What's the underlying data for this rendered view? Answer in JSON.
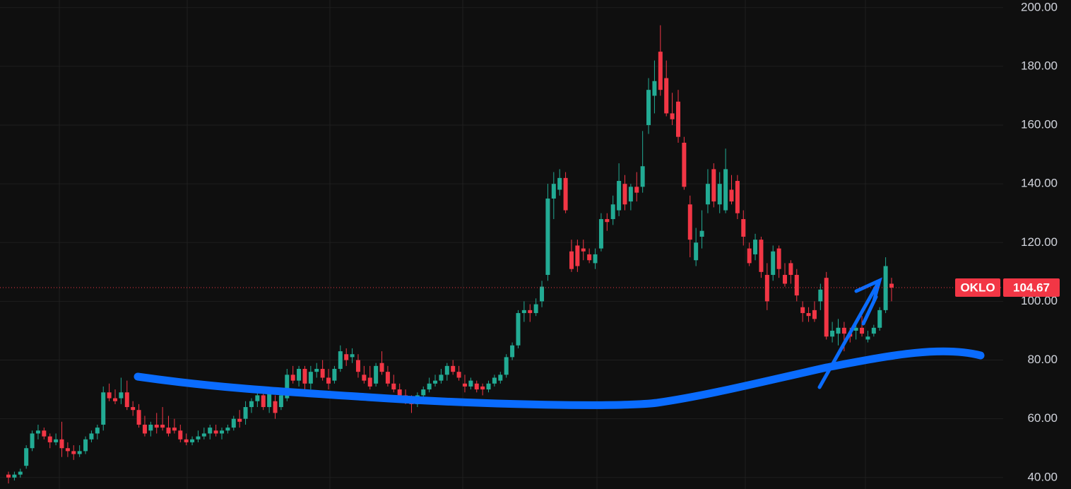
{
  "chart_data": {
    "type": "candlestick",
    "symbol": "OKLO",
    "last_price": 104.67,
    "up_color": "#22ab94",
    "down_color": "#f23645",
    "grid": true,
    "ylim": [
      36.1,
      202.6
    ],
    "yticks": [
      {
        "value": 40,
        "label": "40.00"
      },
      {
        "value": 60,
        "label": "60.00"
      },
      {
        "value": 80,
        "label": "80.00"
      },
      {
        "value": 100,
        "label": "100.00"
      },
      {
        "value": 120,
        "label": "120.00"
      },
      {
        "value": 140,
        "label": "140.00"
      },
      {
        "value": 160,
        "label": "160.00"
      },
      {
        "value": 180,
        "label": "180.00"
      },
      {
        "value": 200,
        "label": "200.00"
      }
    ],
    "ohlc": [
      [
        41,
        42,
        38,
        40
      ],
      [
        40,
        42,
        39,
        41
      ],
      [
        41,
        43,
        40,
        42
      ],
      [
        44,
        51,
        43,
        50
      ],
      [
        50,
        56,
        49,
        55
      ],
      [
        55,
        58,
        53,
        56
      ],
      [
        56,
        57,
        53,
        54
      ],
      [
        54,
        55,
        50,
        52
      ],
      [
        52,
        55,
        51,
        53
      ],
      [
        53,
        59,
        47,
        50
      ],
      [
        50,
        52,
        47,
        49
      ],
      [
        49,
        51,
        46,
        48
      ],
      [
        48,
        51,
        47,
        49
      ],
      [
        49,
        54,
        48,
        53
      ],
      [
        53,
        56,
        52,
        55
      ],
      [
        55,
        58,
        53,
        57
      ],
      [
        58,
        71,
        56,
        69
      ],
      [
        69,
        72,
        66,
        67
      ],
      [
        67,
        70,
        65,
        66
      ],
      [
        67,
        74,
        65,
        69
      ],
      [
        69,
        73,
        63,
        64
      ],
      [
        64,
        66,
        61,
        63
      ],
      [
        63,
        65,
        57,
        58
      ],
      [
        58,
        61,
        54,
        55
      ],
      [
        56,
        59,
        54,
        58
      ],
      [
        58,
        62,
        55,
        57
      ],
      [
        58,
        64,
        56,
        57
      ],
      [
        57,
        61,
        54,
        55
      ],
      [
        57,
        60,
        55,
        56
      ],
      [
        56,
        58,
        52,
        53
      ],
      [
        53,
        55,
        51,
        52
      ],
      [
        52,
        54,
        51,
        53
      ],
      [
        53,
        56,
        52,
        54
      ],
      [
        54,
        57,
        53,
        55
      ],
      [
        55,
        58,
        53,
        57
      ],
      [
        56,
        58,
        54,
        55
      ],
      [
        55,
        57,
        53,
        56
      ],
      [
        56,
        58,
        55,
        57
      ],
      [
        57,
        61,
        56,
        60
      ],
      [
        60,
        63,
        57,
        59
      ],
      [
        60,
        66,
        58,
        64
      ],
      [
        64,
        67,
        62,
        66
      ],
      [
        66,
        70,
        64,
        68
      ],
      [
        68,
        69,
        63,
        64
      ],
      [
        64,
        70,
        62,
        69
      ],
      [
        66,
        68,
        60,
        62
      ],
      [
        64,
        69,
        63,
        68
      ],
      [
        67,
        77,
        66,
        75
      ],
      [
        75,
        78,
        72,
        73
      ],
      [
        73,
        78,
        71,
        77
      ],
      [
        77,
        78,
        70,
        72
      ],
      [
        72,
        78,
        70,
        76
      ],
      [
        76,
        79,
        74,
        77
      ],
      [
        77,
        80,
        73,
        74
      ],
      [
        74,
        77,
        70,
        72
      ],
      [
        73,
        78,
        72,
        77
      ],
      [
        77,
        85,
        76,
        83
      ],
      [
        82,
        84,
        78,
        80
      ],
      [
        81,
        84,
        79,
        82
      ],
      [
        80,
        82,
        74,
        76
      ],
      [
        75,
        78,
        72,
        73
      ],
      [
        74,
        78,
        70,
        71
      ],
      [
        72,
        79,
        71,
        78
      ],
      [
        79,
        83,
        75,
        76
      ],
      [
        76,
        78,
        71,
        72
      ],
      [
        72,
        75,
        69,
        70
      ],
      [
        70,
        72,
        67,
        68
      ],
      [
        68,
        70,
        65,
        66
      ],
      [
        66,
        68,
        62,
        65
      ],
      [
        65,
        69,
        64,
        68
      ],
      [
        68,
        71,
        66,
        70
      ],
      [
        70,
        74,
        69,
        72
      ],
      [
        72,
        75,
        71,
        73
      ],
      [
        73,
        77,
        72,
        75
      ],
      [
        75,
        79,
        73,
        78
      ],
      [
        78,
        80,
        75,
        76
      ],
      [
        76,
        78,
        73,
        74
      ],
      [
        72,
        75,
        69,
        71
      ],
      [
        71,
        74,
        70,
        73
      ],
      [
        72,
        73,
        69,
        70
      ],
      [
        71,
        72,
        68,
        70
      ],
      [
        70,
        73,
        69,
        72
      ],
      [
        72,
        75,
        71,
        74
      ],
      [
        73,
        76,
        72,
        75
      ],
      [
        75,
        82,
        74,
        81
      ],
      [
        81,
        86,
        80,
        85
      ],
      [
        85,
        97,
        84,
        96
      ],
      [
        96,
        100,
        93,
        97
      ],
      [
        97,
        99,
        93,
        96
      ],
      [
        96,
        101,
        95,
        99
      ],
      [
        100,
        107,
        98,
        105
      ],
      [
        109,
        140,
        107,
        135
      ],
      [
        135,
        144,
        128,
        140
      ],
      [
        138,
        145,
        136,
        142
      ],
      [
        142,
        144,
        130,
        131
      ],
      [
        117,
        121,
        110,
        111
      ],
      [
        119,
        121,
        110,
        112
      ],
      [
        118,
        121,
        114,
        117
      ],
      [
        116,
        118,
        113,
        114
      ],
      [
        113,
        118,
        111,
        116
      ],
      [
        118,
        130,
        117,
        128
      ],
      [
        128,
        130,
        124,
        127
      ],
      [
        128,
        136,
        126,
        133
      ],
      [
        131,
        147,
        129,
        141
      ],
      [
        140,
        143,
        131,
        133
      ],
      [
        134,
        140,
        131,
        139
      ],
      [
        139,
        144,
        134,
        137
      ],
      [
        139,
        158,
        137,
        146
      ],
      [
        160,
        176,
        157,
        172
      ],
      [
        170,
        182,
        164,
        175
      ],
      [
        185,
        194,
        170,
        172
      ],
      [
        176,
        182,
        163,
        164
      ],
      [
        164,
        171,
        160,
        162
      ],
      [
        168,
        172,
        154,
        156
      ],
      [
        154,
        156,
        138,
        139
      ],
      [
        133,
        136,
        115,
        121
      ],
      [
        114,
        125,
        112,
        120
      ],
      [
        122,
        131,
        118,
        124
      ],
      [
        133,
        145,
        130,
        140
      ],
      [
        145,
        147,
        132,
        134
      ],
      [
        133,
        144,
        130,
        140
      ],
      [
        131,
        152,
        130,
        145
      ],
      [
        138,
        143,
        133,
        134
      ],
      [
        141,
        143,
        128,
        130
      ],
      [
        128,
        131,
        119,
        122
      ],
      [
        118,
        120,
        112,
        113
      ],
      [
        116,
        123,
        114,
        121
      ],
      [
        121,
        122,
        108,
        110
      ],
      [
        109,
        113,
        97,
        100
      ],
      [
        109,
        119,
        107,
        117
      ],
      [
        118,
        119,
        108,
        111
      ],
      [
        109,
        113,
        105,
        106
      ],
      [
        113,
        114,
        106,
        109
      ],
      [
        109,
        111,
        100,
        102
      ],
      [
        98,
        100,
        93,
        96
      ],
      [
        96,
        98,
        93,
        95
      ],
      [
        97,
        100,
        93,
        94
      ],
      [
        100,
        106,
        97,
        104
      ],
      [
        108,
        110,
        87,
        88
      ],
      [
        88,
        93,
        86,
        90
      ],
      [
        89,
        94,
        85,
        91
      ],
      [
        91,
        93,
        83,
        89
      ],
      [
        89,
        91,
        86,
        88
      ],
      [
        90,
        93,
        87,
        91
      ],
      [
        91,
        95,
        88,
        89
      ],
      [
        87,
        90,
        86,
        88
      ],
      [
        89,
        92,
        88,
        91
      ],
      [
        91,
        98,
        90,
        97
      ],
      [
        97,
        115,
        96,
        112
      ],
      [
        106,
        108,
        100,
        104.67
      ]
    ]
  }
}
